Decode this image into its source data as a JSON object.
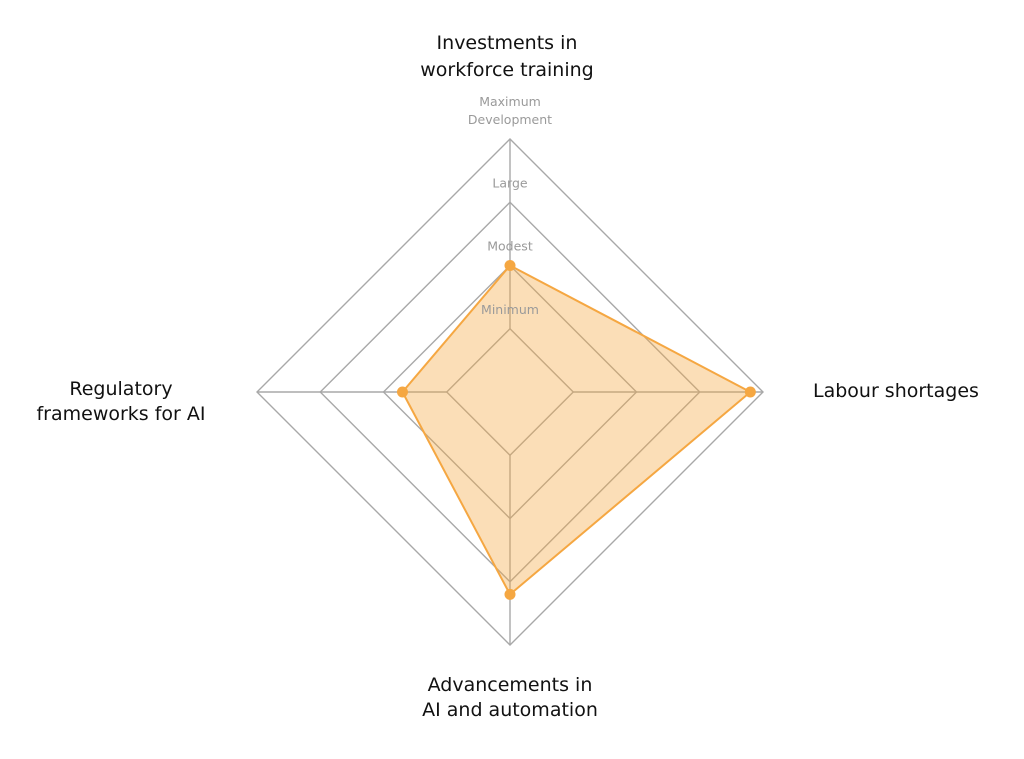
{
  "chart_data": {
    "type": "radar",
    "axes": [
      {
        "key": "top",
        "label_lines": [
          "Investments in",
          "workforce training"
        ]
      },
      {
        "key": "right",
        "label_lines": [
          "Labour shortages"
        ]
      },
      {
        "key": "bottom",
        "label_lines": [
          "Advancements in",
          "AI and automation"
        ]
      },
      {
        "key": "left",
        "label_lines": [
          "Regulatory",
          "frameworks for AI"
        ]
      }
    ],
    "levels": [
      {
        "value": 1,
        "label_lines": [
          "Minimum"
        ]
      },
      {
        "value": 2,
        "label_lines": [
          "Modest"
        ]
      },
      {
        "value": 3,
        "label_lines": [
          "Large"
        ]
      },
      {
        "value": 4,
        "label_lines": [
          "Maximum",
          "Development"
        ]
      }
    ],
    "range": [
      0,
      4
    ],
    "series": [
      {
        "values": [
          2,
          3.8,
          3.2,
          1.7
        ]
      }
    ],
    "colors": {
      "series_stroke": "#F5A742",
      "series_fill": "#F5A742",
      "grid": "#a8a8a8"
    },
    "legend": "none"
  }
}
